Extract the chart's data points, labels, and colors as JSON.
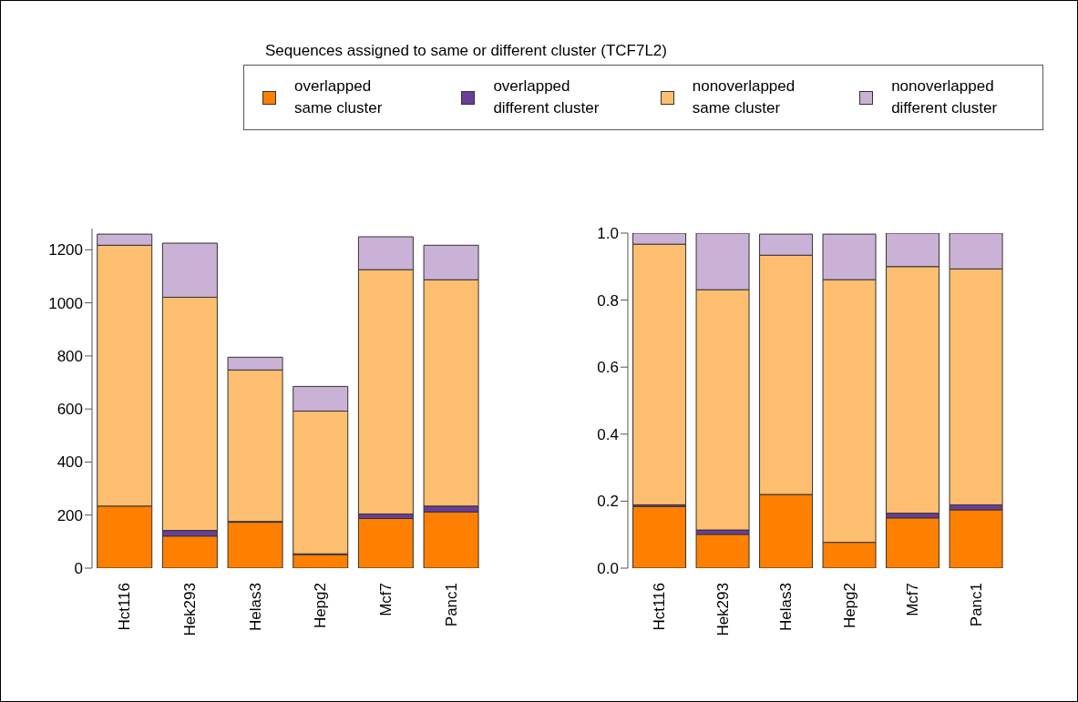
{
  "chart_data": [
    {
      "type": "bar",
      "stacked": true,
      "legend": "top",
      "legend_title": "Sequences assigned to same or different cluster (TCF7L2)",
      "categories": [
        "Hct116",
        "Hek293",
        "Helas3",
        "Hepg2",
        "Mcf7",
        "Panc1"
      ],
      "ylim": [
        0,
        1280
      ],
      "yticks": [
        0,
        200,
        400,
        600,
        800,
        1000,
        1200
      ],
      "series": [
        {
          "name": "overlapped\nsame cluster",
          "color": "#ff7f00",
          "values": [
            234,
            121,
            173,
            51,
            187,
            212
          ]
        },
        {
          "name": "overlapped\ndifferent cluster",
          "color": "#6a3d9a",
          "values": [
            null,
            21,
            3,
            3,
            17,
            22
          ]
        },
        {
          "name": "nonoverlapped\nsame cluster",
          "color": "#fdbf6f",
          "values": [
            983,
            879,
            571,
            538,
            921,
            853
          ]
        },
        {
          "name": "nonoverlapped\ndifferent cluster",
          "color": "#cab2d6",
          "values": [
            42,
            204,
            48,
            93,
            124,
            130
          ]
        }
      ]
    },
    {
      "type": "bar",
      "stacked": true,
      "categories": [
        "Hct116",
        "Hek293",
        "Helas3",
        "Hepg2",
        "Mcf7",
        "Panc1"
      ],
      "ylim": [
        0,
        1
      ],
      "yticks": [
        {
          "value": 0,
          "label": "0.0"
        },
        {
          "value": 0.2,
          "label": "0.2"
        },
        {
          "value": 0.4,
          "label": "0.4"
        },
        {
          "value": 0.6,
          "label": "0.6"
        },
        {
          "value": 0.8,
          "label": "0.8"
        },
        {
          "value": 1,
          "label": "1.0"
        }
      ],
      "series": [
        {
          "color": "#ff7f00",
          "values": [
            0.184,
            0.101,
            0.22,
            0.077,
            0.15,
            0.174
          ]
        },
        {
          "color": "#6a3d9a",
          "values": [
            0.005,
            0.013,
            null,
            null,
            0.014,
            0.015
          ]
        },
        {
          "color": "#fdbf6f",
          "values": [
            0.778,
            0.717,
            0.714,
            0.784,
            0.736,
            0.704
          ]
        },
        {
          "color": "#cab2d6",
          "values": [
            0.033,
            0.169,
            0.063,
            0.136,
            0.1,
            0.107
          ]
        }
      ]
    }
  ]
}
